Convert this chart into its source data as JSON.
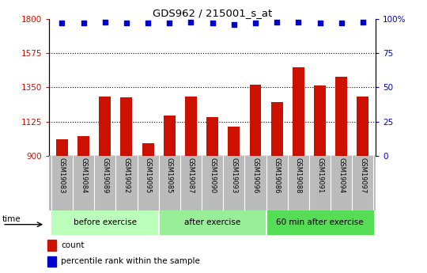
{
  "title": "GDS962 / 215001_s_at",
  "categories": [
    "GSM19083",
    "GSM19084",
    "GSM19089",
    "GSM19092",
    "GSM19095",
    "GSM19085",
    "GSM19087",
    "GSM19090",
    "GSM19093",
    "GSM19096",
    "GSM19086",
    "GSM19088",
    "GSM19091",
    "GSM19094",
    "GSM19097"
  ],
  "bar_values": [
    1010,
    1030,
    1290,
    1285,
    980,
    1165,
    1290,
    1155,
    1090,
    1370,
    1255,
    1480,
    1360,
    1420,
    1290
  ],
  "percentile_values": [
    97,
    97,
    98,
    97,
    97,
    97,
    98,
    97,
    96,
    97,
    98,
    98,
    97,
    97,
    98
  ],
  "bar_color": "#cc1100",
  "dot_color": "#0000cc",
  "ylim_left": [
    900,
    1800
  ],
  "ylim_right": [
    0,
    100
  ],
  "yticks_left": [
    900,
    1125,
    1350,
    1575,
    1800
  ],
  "yticks_right": [
    0,
    25,
    50,
    75,
    100
  ],
  "groups": [
    {
      "label": "before exercise",
      "start": 0,
      "end": 5,
      "color": "#bbffbb"
    },
    {
      "label": "after exercise",
      "start": 5,
      "end": 10,
      "color": "#99ee99"
    },
    {
      "label": "60 min after exercise",
      "start": 10,
      "end": 15,
      "color": "#55dd55"
    }
  ],
  "xtick_bg_color": "#bbbbbb",
  "plot_bg_color": "#ffffff",
  "legend_count_label": "count",
  "legend_pct_label": "percentile rank within the sample",
  "time_label": "time",
  "left_tick_color": "#cc1100",
  "right_tick_color": "#0000cc",
  "fig_width": 5.4,
  "fig_height": 3.45,
  "dpi": 100
}
